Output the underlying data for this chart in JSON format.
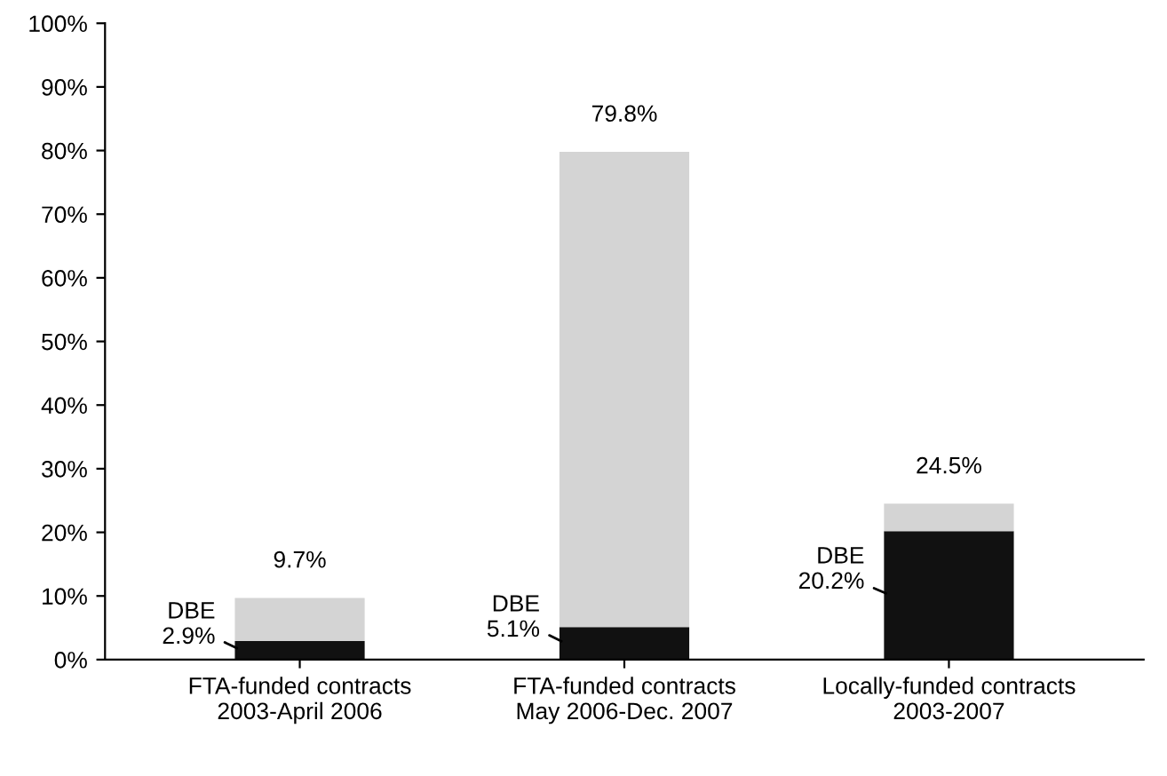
{
  "chart_data": {
    "type": "bar",
    "stacked": true,
    "categories": [
      "FTA-funded contracts\n2003-April 2006",
      "FTA-funded contracts\nMay 2006-Dec. 2007",
      "Locally-funded contracts\n2003-2007"
    ],
    "series": [
      {
        "color": "#111111",
        "values": [
          2.9,
          5.1,
          20.2
        ],
        "value_labels": [
          "DBE\n2.9%",
          "DBE\n5.1%",
          "DBE\n20.2%"
        ]
      },
      {
        "color": "#d4d4d4",
        "values": [
          6.8,
          74.7,
          4.3
        ]
      }
    ],
    "totals": [
      "9.7%",
      "79.8%",
      "24.5%"
    ],
    "ylim": [
      0,
      100
    ],
    "yticks": [
      {
        "value": 0,
        "label": "0%"
      },
      {
        "value": 10,
        "label": "10%"
      },
      {
        "value": 20,
        "label": "20%"
      },
      {
        "value": 30,
        "label": "30%"
      },
      {
        "value": 40,
        "label": "40%"
      },
      {
        "value": 50,
        "label": "50%"
      },
      {
        "value": 60,
        "label": "60%"
      },
      {
        "value": 70,
        "label": "70%"
      },
      {
        "value": 80,
        "label": "80%"
      },
      {
        "value": 90,
        "label": "90%"
      },
      {
        "value": 100,
        "label": "100%"
      }
    ],
    "grid": false,
    "legend": false
  }
}
